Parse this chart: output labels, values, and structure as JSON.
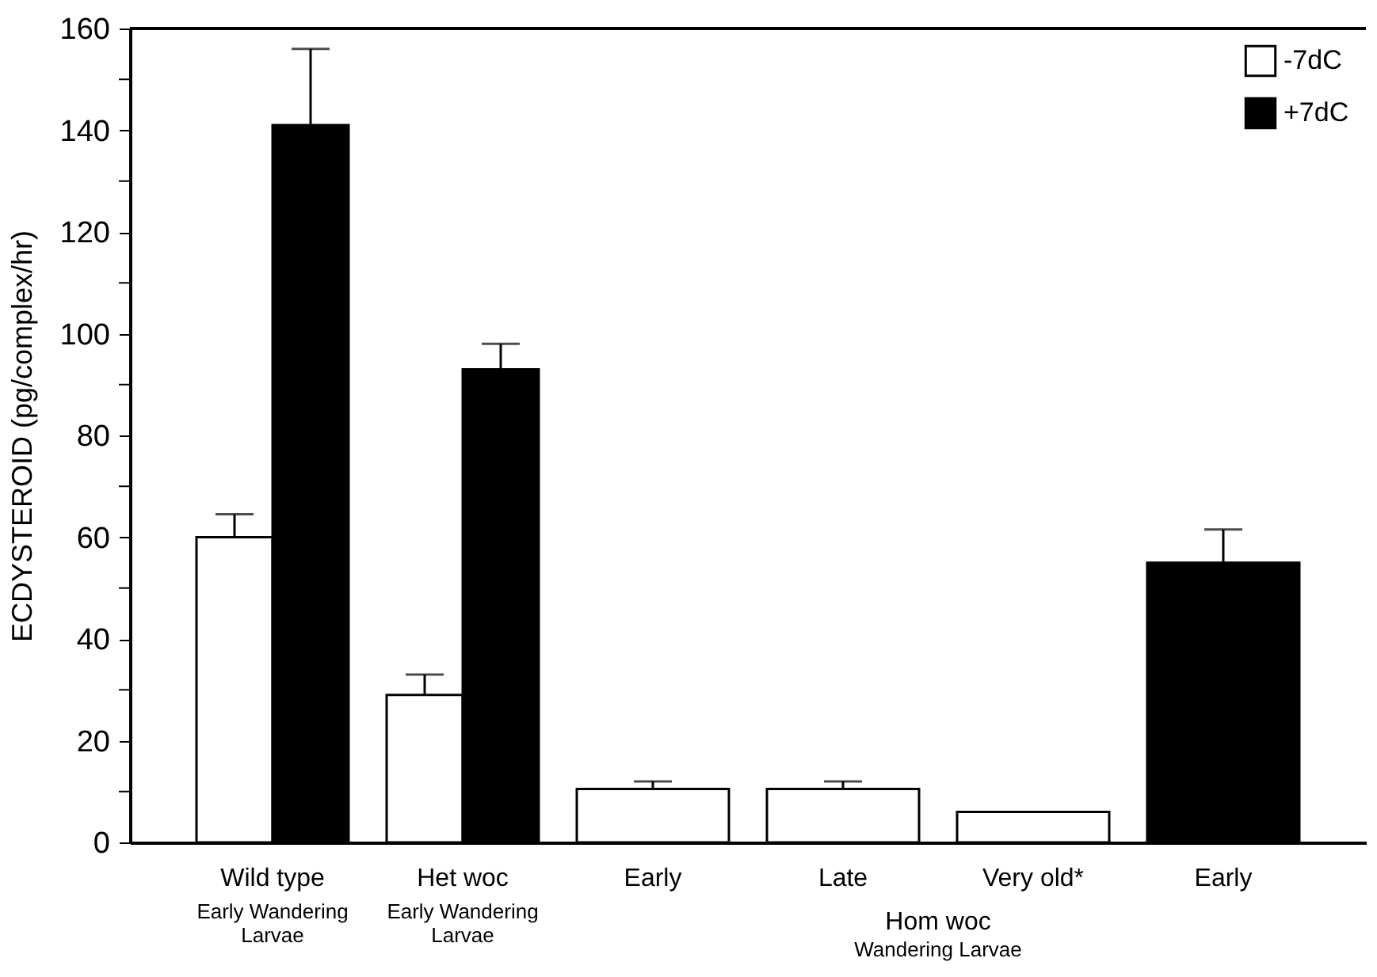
{
  "chart_data": {
    "type": "bar",
    "ylabel": "ECDYSTEROID (pg/complex/hr)",
    "categories": [
      "Wild type\nEarly Wandering\nLarvae",
      "Het woc\nEarly Wandering\nLarvae",
      "Early",
      "Late",
      "Very old*",
      "Early"
    ],
    "series": [
      {
        "name": "-7dC",
        "color": "#ffffff",
        "values": [
          60,
          29,
          10.5,
          10.5,
          6,
          null
        ],
        "errors": [
          [
            60,
            64.5
          ],
          [
            29,
            33
          ],
          [
            10.5,
            12
          ],
          [
            10.5,
            12
          ],
          null,
          null
        ]
      },
      {
        "name": "+7dC",
        "color": "#000000",
        "values": [
          141,
          93,
          null,
          null,
          null,
          55
        ],
        "errors": [
          [
            141,
            156
          ],
          [
            93,
            98
          ],
          null,
          null,
          null,
          [
            55,
            61.5
          ]
        ]
      }
    ],
    "ylim": [
      0,
      160
    ],
    "yticks": [
      0,
      {
        "value": 10,
        "label": null
      },
      20,
      {
        "value": 30,
        "label": null
      },
      40,
      {
        "value": 50,
        "label": null
      },
      60,
      {
        "value": 70,
        "label": null
      },
      80,
      {
        "value": 90,
        "label": null
      },
      100,
      {
        "value": 110,
        "label": null
      },
      120,
      {
        "value": 130,
        "label": null
      },
      140,
      {
        "value": 150,
        "label": null
      },
      160
    ],
    "annotations": [
      "Hom woc\nWandering Larvae"
    ],
    "legend": "top right",
    "grid": false
  }
}
